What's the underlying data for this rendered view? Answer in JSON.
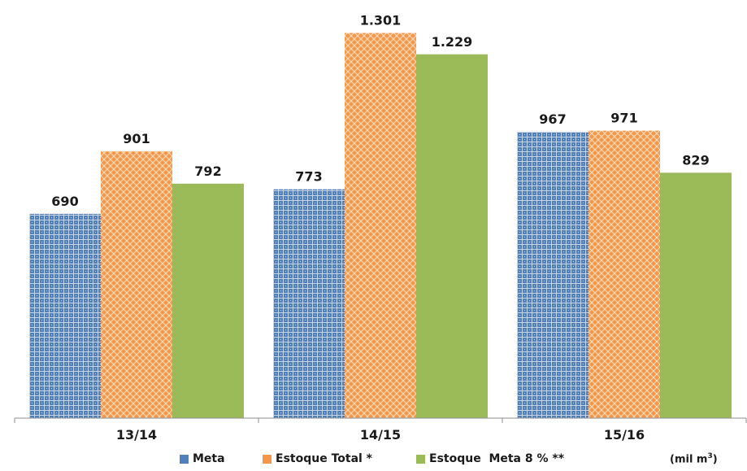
{
  "chart_data": {
    "type": "bar",
    "categories": [
      "13/14",
      "14/15",
      "15/16"
    ],
    "series": [
      {
        "name": "Meta",
        "values": [
          690,
          773,
          967
        ],
        "labels": [
          "690",
          "773",
          "967"
        ],
        "color": "#4f81bd",
        "pattern": "dotted-grid"
      },
      {
        "name": "Estoque Total *",
        "values": [
          901,
          1301,
          971
        ],
        "labels": [
          "901",
          "1.301",
          "971"
        ],
        "color": "#f79646",
        "pattern": "diamond-lattice"
      },
      {
        "name": "Estoque  Meta 8 % **",
        "values": [
          792,
          1229,
          829
        ],
        "labels": [
          "792",
          "1.229",
          "829"
        ],
        "color": "#9bbb59",
        "pattern": "solid"
      }
    ],
    "ylim": [
      0,
      1330
    ],
    "unit_label": "(mil m",
    "unit_superscript": "3",
    "unit_suffix": ")",
    "legend_position": "bottom",
    "grid": false
  }
}
